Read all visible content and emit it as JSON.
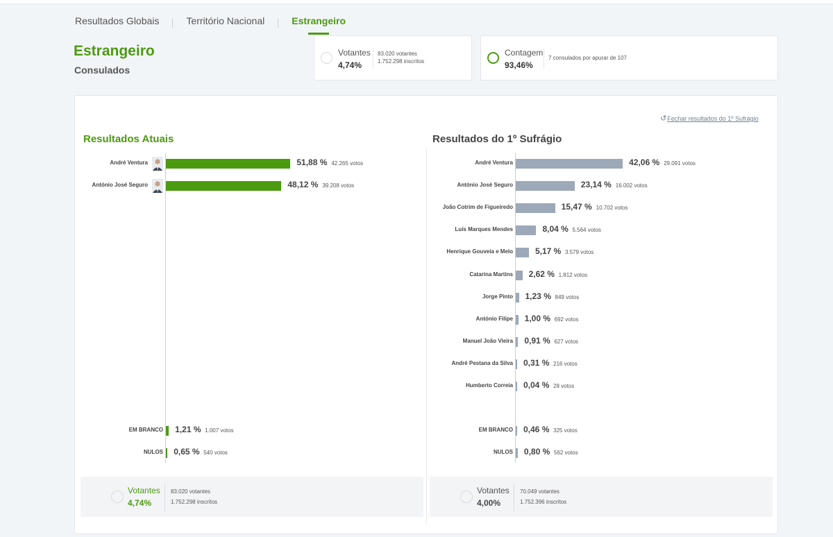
{
  "tabs": [
    "Resultados Globais",
    "Território Nacional",
    "Estrangeiro"
  ],
  "header": {
    "title": "Estrangeiro",
    "subtitle": "Consulados"
  },
  "cards": {
    "votantes": {
      "label": "Votantes",
      "value": "4,74%",
      "voters": "83.020 votantes",
      "registered": "1.752.298 inscritos"
    },
    "contagem": {
      "label": "Contagem",
      "value": "93,46%",
      "detail": "7 consulados por apurar de 107"
    }
  },
  "close_link": "Fechar resultados do 1º Sufrágio",
  "current": {
    "title": "Resultados Atuais",
    "candidates": [
      {
        "name": "André Ventura",
        "pct": "51,88 %",
        "votes": "42.265 votos",
        "value": 51.88
      },
      {
        "name": "António José Seguro",
        "pct": "48,12 %",
        "votes": "39.208 votos",
        "value": 48.12
      }
    ],
    "blank": {
      "name": "EM BRANCO",
      "pct": "1,21 %",
      "votes": "1.007 votos",
      "value": 1.21
    },
    "null": {
      "name": "NULOS",
      "pct": "0,65 %",
      "votes": "540 votos",
      "value": 0.65
    },
    "footer": {
      "label": "Votantes",
      "value": "4,74%",
      "voters": "83.020 votantes",
      "registered": "1.752.298 inscritos"
    }
  },
  "first": {
    "title": "Resultados do 1º Sufrágio",
    "candidates": [
      {
        "name": "André Ventura",
        "pct": "42,06 %",
        "votes": "29.091 votos",
        "value": 42.06
      },
      {
        "name": "António José Seguro",
        "pct": "23,14 %",
        "votes": "16.002 votos",
        "value": 23.14
      },
      {
        "name": "João Cotrim de Figueiredo",
        "pct": "15,47 %",
        "votes": "10.702 votos",
        "value": 15.47
      },
      {
        "name": "Luís Marques Mendes",
        "pct": "8,04 %",
        "votes": "5.564 votos",
        "value": 8.04
      },
      {
        "name": "Henrique Gouveia e Melo",
        "pct": "5,17 %",
        "votes": "3.579 votos",
        "value": 5.17
      },
      {
        "name": "Catarina Martins",
        "pct": "2,62 %",
        "votes": "1.812 votos",
        "value": 2.62
      },
      {
        "name": "Jorge Pinto",
        "pct": "1,23 %",
        "votes": "849 votos",
        "value": 1.23
      },
      {
        "name": "António Filipe",
        "pct": "1,00 %",
        "votes": "692 votos",
        "value": 1.0
      },
      {
        "name": "Manuel João Vieira",
        "pct": "0,91 %",
        "votes": "627 votos",
        "value": 0.91
      },
      {
        "name": "André Pestana da Silva",
        "pct": "0,31 %",
        "votes": "216 votos",
        "value": 0.31
      },
      {
        "name": "Humberto Correia",
        "pct": "0,04 %",
        "votes": "28 votos",
        "value": 0.04
      }
    ],
    "blank": {
      "name": "EM BRANCO",
      "pct": "0,46 %",
      "votes": "325 votos",
      "value": 0.46
    },
    "null": {
      "name": "NULOS",
      "pct": "0,80 %",
      "votes": "562 votos",
      "value": 0.8
    },
    "footer": {
      "label": "Votantes",
      "value": "4,00%",
      "voters": "70.049 votantes",
      "registered": "1.752.396 inscritos"
    }
  },
  "colors": {
    "accent": "#4c9a10",
    "bar_grey": "#9da8b9"
  },
  "icons": {
    "avatar": "candidate-photo",
    "undo": "undo-icon",
    "ring": "progress-ring-icon"
  }
}
